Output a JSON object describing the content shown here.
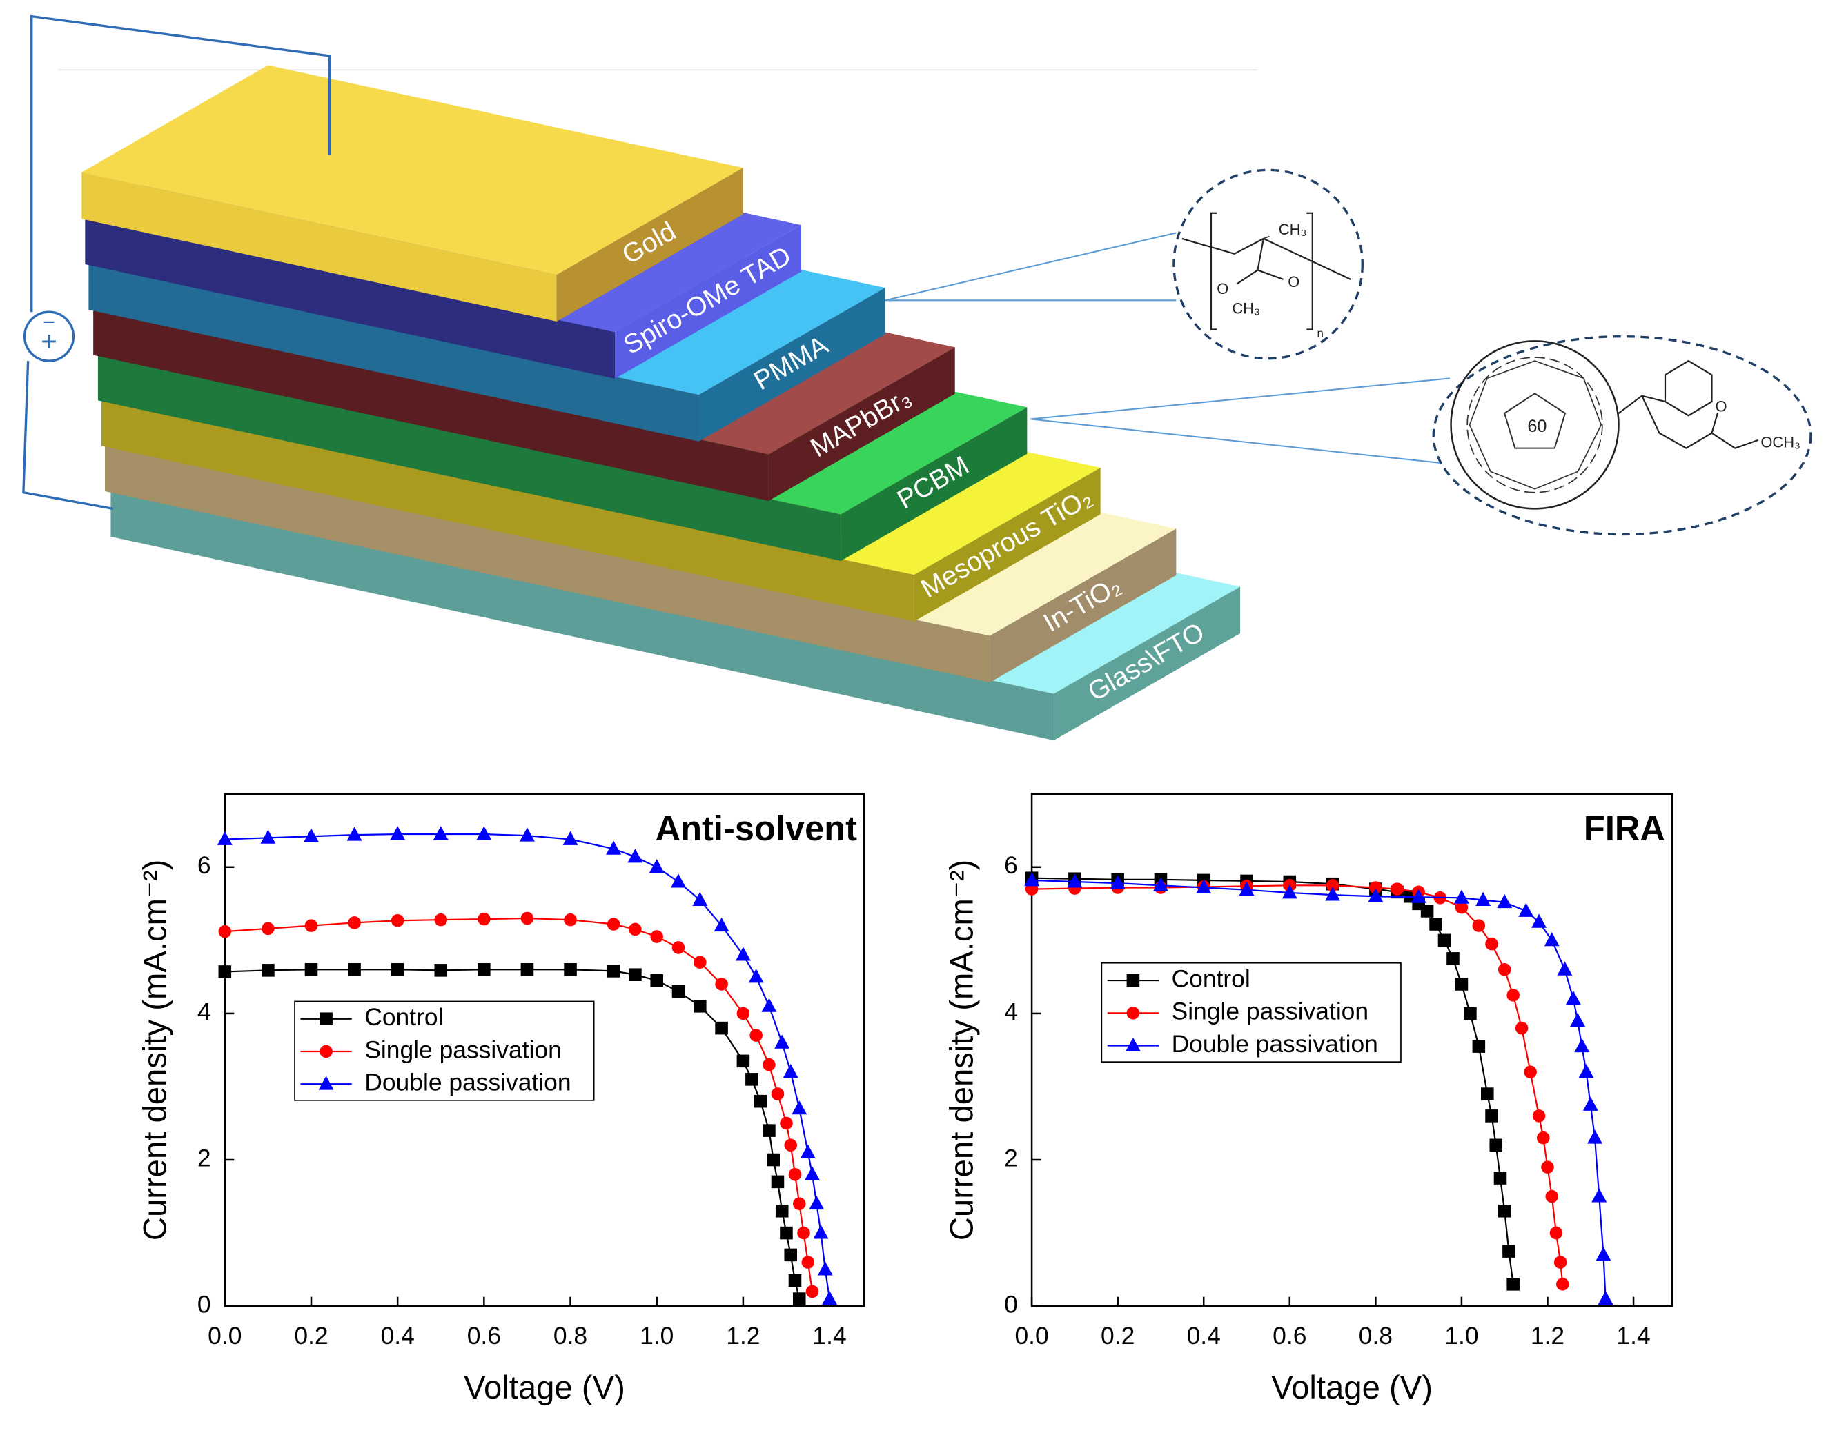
{
  "diagram": {
    "layers": [
      "Gold",
      "Spiro-OMe TAD",
      "PMMA",
      "MAPbBr₃",
      "PCBM",
      "Mesoprous TiO₂",
      "In-TiO₂",
      "Glass\\FTO"
    ],
    "source_signs": [
      "−",
      "+"
    ],
    "pmma_labels": [
      "CH₃",
      "O",
      "O",
      "CH₃",
      "n"
    ],
    "pcbm_labels": [
      "60",
      "O",
      "OCH₃"
    ]
  },
  "chart_data": [
    {
      "type": "line",
      "title": "Anti-solvent",
      "x_label": "Voltage (V)",
      "y_label": "Current density (mA.cm⁻²)",
      "xlim": [
        0,
        1.48
      ],
      "ylim": [
        0,
        7
      ],
      "xticks": [
        {
          "value": 0,
          "label": "0.0"
        },
        {
          "value": 0.2,
          "label": "0.2"
        },
        {
          "value": 0.4,
          "label": "0.4"
        },
        {
          "value": 0.6,
          "label": "0.6"
        },
        {
          "value": 0.8,
          "label": "0.8"
        },
        {
          "value": 1,
          "label": "1.0"
        },
        {
          "value": 1.2,
          "label": "1.2"
        },
        {
          "value": 1.4,
          "label": "1.4"
        }
      ],
      "yticks": [
        0,
        2,
        4,
        6
      ],
      "legend": "center left",
      "series": [
        {
          "name": "Control",
          "color": "#000000",
          "marker": "square",
          "x": [
            0,
            0.1,
            0.2,
            0.3,
            0.4,
            0.5,
            0.6,
            0.7,
            0.8,
            0.9,
            0.95,
            1.0,
            1.05,
            1.1,
            1.15,
            1.2,
            1.22,
            1.24,
            1.26,
            1.27,
            1.28,
            1.29,
            1.3,
            1.31,
            1.32,
            1.33
          ],
          "values": [
            4.57,
            4.59,
            4.6,
            4.6,
            4.6,
            4.59,
            4.6,
            4.6,
            4.6,
            4.58,
            4.53,
            4.45,
            4.3,
            4.1,
            3.8,
            3.35,
            3.1,
            2.8,
            2.4,
            2.0,
            1.7,
            1.3,
            1.0,
            0.7,
            0.35,
            0.1
          ]
        },
        {
          "name": "Single passivation",
          "color": "#ff0000",
          "marker": "circle",
          "x": [
            0,
            0.1,
            0.2,
            0.3,
            0.4,
            0.5,
            0.6,
            0.7,
            0.8,
            0.9,
            0.95,
            1.0,
            1.05,
            1.1,
            1.15,
            1.2,
            1.23,
            1.26,
            1.28,
            1.3,
            1.31,
            1.32,
            1.33,
            1.34,
            1.35,
            1.36
          ],
          "values": [
            5.12,
            5.16,
            5.2,
            5.24,
            5.27,
            5.28,
            5.29,
            5.3,
            5.28,
            5.22,
            5.15,
            5.05,
            4.9,
            4.7,
            4.4,
            4.0,
            3.7,
            3.3,
            2.9,
            2.5,
            2.2,
            1.8,
            1.4,
            1.0,
            0.6,
            0.2
          ]
        },
        {
          "name": "Double passivation",
          "color": "#0000ff",
          "marker": "triangle",
          "x": [
            0,
            0.1,
            0.2,
            0.3,
            0.4,
            0.5,
            0.6,
            0.7,
            0.8,
            0.9,
            0.95,
            1.0,
            1.05,
            1.1,
            1.15,
            1.2,
            1.23,
            1.26,
            1.29,
            1.31,
            1.33,
            1.35,
            1.36,
            1.37,
            1.38,
            1.39,
            1.4
          ],
          "values": [
            6.38,
            6.4,
            6.42,
            6.44,
            6.45,
            6.45,
            6.45,
            6.43,
            6.38,
            6.25,
            6.14,
            6.0,
            5.8,
            5.55,
            5.2,
            4.8,
            4.5,
            4.1,
            3.6,
            3.2,
            2.7,
            2.1,
            1.8,
            1.4,
            1.0,
            0.5,
            0.1
          ]
        }
      ]
    },
    {
      "type": "line",
      "title": "FIRA",
      "x_label": "Voltage (V)",
      "y_label": "Current density (mA.cm⁻²)",
      "xlim": [
        0,
        1.49
      ],
      "ylim": [
        0,
        7
      ],
      "xticks": [
        {
          "value": 0,
          "label": "0.0"
        },
        {
          "value": 0.2,
          "label": "0.2"
        },
        {
          "value": 0.4,
          "label": "0.4"
        },
        {
          "value": 0.6,
          "label": "0.6"
        },
        {
          "value": 0.8,
          "label": "0.8"
        },
        {
          "value": 1,
          "label": "1.0"
        },
        {
          "value": 1.2,
          "label": "1.2"
        },
        {
          "value": 1.4,
          "label": "1.4"
        }
      ],
      "yticks": [
        0,
        2,
        4,
        6
      ],
      "legend": "upper left",
      "series": [
        {
          "name": "Control",
          "color": "#000000",
          "marker": "square",
          "x": [
            0,
            0.1,
            0.2,
            0.3,
            0.4,
            0.5,
            0.6,
            0.7,
            0.8,
            0.85,
            0.88,
            0.9,
            0.92,
            0.94,
            0.96,
            0.98,
            1.0,
            1.02,
            1.04,
            1.06,
            1.07,
            1.08,
            1.09,
            1.1,
            1.11,
            1.12
          ],
          "values": [
            5.85,
            5.84,
            5.83,
            5.83,
            5.82,
            5.81,
            5.8,
            5.77,
            5.7,
            5.66,
            5.6,
            5.5,
            5.4,
            5.22,
            5.0,
            4.75,
            4.4,
            4.0,
            3.55,
            2.9,
            2.6,
            2.2,
            1.75,
            1.3,
            0.75,
            0.3
          ]
        },
        {
          "name": "Single passivation",
          "color": "#ff0000",
          "marker": "circle",
          "x": [
            0,
            0.1,
            0.2,
            0.3,
            0.4,
            0.5,
            0.6,
            0.7,
            0.8,
            0.85,
            0.9,
            0.95,
            1.0,
            1.04,
            1.07,
            1.1,
            1.12,
            1.14,
            1.16,
            1.18,
            1.19,
            1.2,
            1.21,
            1.22,
            1.23,
            1.235
          ],
          "values": [
            5.7,
            5.71,
            5.72,
            5.72,
            5.73,
            5.74,
            5.75,
            5.75,
            5.72,
            5.7,
            5.66,
            5.58,
            5.45,
            5.2,
            4.95,
            4.6,
            4.25,
            3.8,
            3.2,
            2.6,
            2.3,
            1.9,
            1.5,
            1.0,
            0.6,
            0.3
          ]
        },
        {
          "name": "Double passivation",
          "color": "#0000ff",
          "marker": "triangle",
          "x": [
            0,
            0.1,
            0.2,
            0.3,
            0.4,
            0.5,
            0.6,
            0.7,
            0.8,
            0.9,
            1.0,
            1.05,
            1.1,
            1.15,
            1.18,
            1.21,
            1.24,
            1.26,
            1.27,
            1.28,
            1.29,
            1.3,
            1.31,
            1.32,
            1.33,
            1.335
          ],
          "values": [
            5.82,
            5.8,
            5.78,
            5.75,
            5.72,
            5.69,
            5.65,
            5.62,
            5.6,
            5.59,
            5.58,
            5.55,
            5.52,
            5.4,
            5.25,
            5.0,
            4.6,
            4.2,
            3.9,
            3.55,
            3.2,
            2.75,
            2.3,
            1.5,
            0.7,
            0.1
          ]
        }
      ]
    }
  ]
}
